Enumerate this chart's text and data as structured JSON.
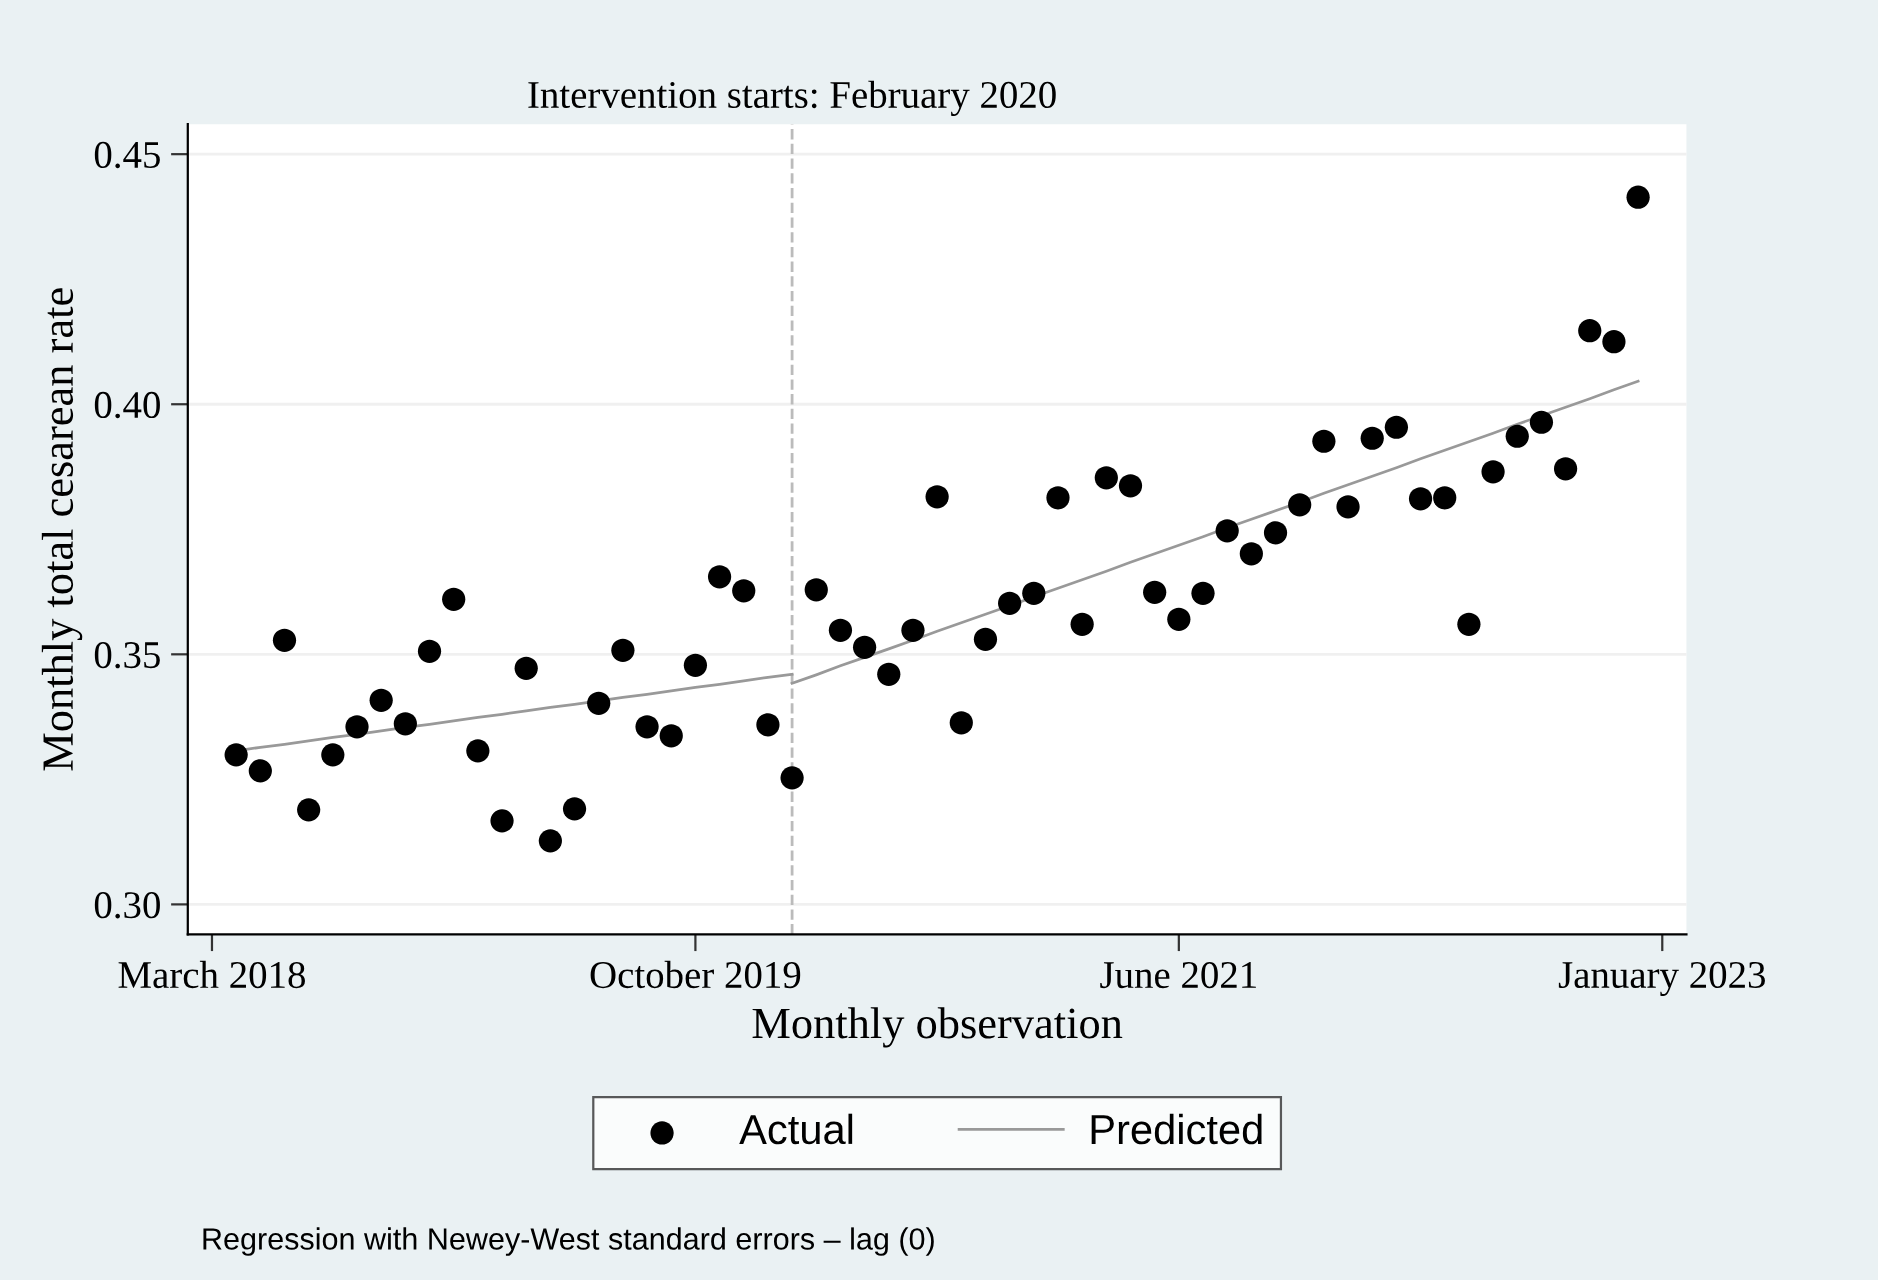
{
  "chart_data": {
    "type": "scatter",
    "xlabel": "Monthly observation",
    "ylabel": "Monthly total cesarean rate",
    "categories": [
      "March 2018",
      null,
      null,
      null,
      null,
      null,
      null,
      null,
      null,
      null,
      null,
      null,
      null,
      null,
      null,
      null,
      null,
      null,
      null,
      null,
      "October 2019",
      null,
      null,
      null,
      null,
      null,
      null,
      null,
      null,
      null,
      null,
      null,
      null,
      null,
      null,
      null,
      null,
      null,
      null,
      null,
      "June 2021",
      null,
      null,
      null,
      null,
      null,
      null,
      null,
      null,
      null,
      null,
      null,
      null,
      null,
      null,
      null,
      null,
      null,
      null,
      null,
      "January 2023"
    ],
    "series": [
      {
        "name": "Actual",
        "color": "#000000",
        "marker": "circle",
        "values": [
          null,
          0.3299,
          0.3267,
          0.3528,
          0.3189,
          0.3299,
          0.3355,
          0.3408,
          0.3361,
          0.3506,
          0.361,
          0.3307,
          0.3167,
          0.3472,
          0.3127,
          0.3191,
          0.3402,
          0.3508,
          0.3355,
          0.3337,
          0.3478,
          0.3655,
          0.3627,
          0.3359,
          0.3253,
          0.3629,
          0.3548,
          0.3514,
          0.346,
          0.3548,
          0.3815,
          0.3363,
          0.353,
          0.3602,
          0.3622,
          0.3813,
          0.356,
          0.3853,
          0.3837,
          0.3624,
          0.357,
          0.3622,
          0.3747,
          0.3701,
          0.3743,
          0.3799,
          0.3926,
          0.3795,
          0.3932,
          0.3954,
          0.3811,
          0.3813,
          0.356,
          0.3865,
          0.3936,
          0.3964,
          0.3871,
          0.4147,
          0.4125,
          0.4414,
          null
        ]
      },
      {
        "name": "Predicted",
        "type": "line",
        "color": "#999999",
        "marker": "none",
        "line_style": "solid",
        "values": [
          null,
          0.3307,
          0.3314,
          0.332,
          0.3327,
          0.3334,
          0.334,
          0.3347,
          0.3354,
          0.336,
          0.3367,
          0.3374,
          0.338,
          0.3387,
          0.3394,
          0.34,
          0.3407,
          0.3414,
          0.342,
          0.3427,
          0.3434,
          0.344,
          0.3447,
          0.3454,
          0.346,
          null,
          null,
          null,
          null,
          null,
          null,
          null,
          null,
          null,
          null,
          null,
          null,
          null,
          null,
          null,
          null,
          null,
          null,
          null,
          null,
          null,
          null,
          null,
          null,
          null,
          null,
          null,
          null,
          null,
          null,
          null,
          null,
          null,
          null,
          null,
          null
        ]
      },
      {
        "type": "line",
        "color": "#999999",
        "marker": "none",
        "line_style": "solid",
        "values": [
          null,
          null,
          null,
          null,
          null,
          null,
          null,
          null,
          null,
          null,
          null,
          null,
          null,
          null,
          null,
          null,
          null,
          null,
          null,
          null,
          null,
          null,
          null,
          null,
          0.3442,
          0.3459,
          0.3477,
          0.3494,
          0.3511,
          0.3528,
          0.3546,
          0.3563,
          0.358,
          0.3597,
          0.3615,
          0.3632,
          0.3649,
          0.3666,
          0.3684,
          0.3701,
          0.3718,
          0.3735,
          0.3753,
          0.377,
          0.3787,
          0.3804,
          0.3822,
          0.3839,
          0.3856,
          0.3873,
          0.3891,
          0.3908,
          0.3925,
          0.3942,
          0.396,
          0.3977,
          0.3994,
          0.4011,
          0.4029,
          0.4046,
          null
        ]
      }
    ],
    "ylim": [
      0.294,
      0.456
    ],
    "yticks": [
      {
        "value": 0.3,
        "label": "0.30"
      },
      {
        "value": 0.35,
        "label": "0.35"
      },
      {
        "value": 0.4,
        "label": "0.40"
      },
      {
        "value": 0.45,
        "label": "0.45"
      }
    ],
    "grid": "y",
    "legend": "bottom",
    "annotations": [
      "Intervention starts: February 2020",
      "Regression with Newey-West standard errors – lag (0)"
    ]
  }
}
